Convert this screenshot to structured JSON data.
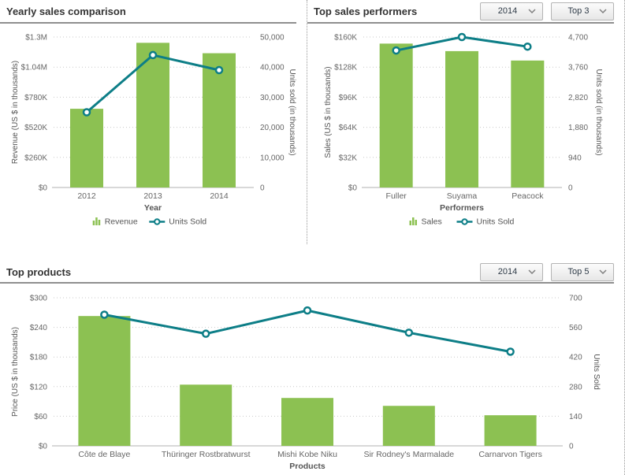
{
  "panels": {
    "performers": {
      "year_dropdown": "2014",
      "top_dropdown": "Top 3"
    },
    "products": {
      "year_dropdown": "2014",
      "top_dropdown": "Top 5"
    }
  },
  "colors": {
    "bar": "#8cc152",
    "line": "#0d7e87",
    "marker_fill": "#ffffff",
    "grid": "#c9c9c9",
    "axis_line": "#b0b0b0",
    "tick_text": "#666666",
    "axis_title_text": "#555555"
  },
  "chart_data": [
    {
      "type": "combo",
      "title": "Yearly sales comparison",
      "categories": [
        "2012",
        "2013",
        "2014"
      ],
      "series": [
        {
          "name": "Revenue",
          "type": "bar",
          "axis": "left",
          "values": [
            680000,
            1250000,
            1160000
          ]
        },
        {
          "name": "Units Sold",
          "type": "line",
          "axis": "right",
          "values": [
            25000,
            44000,
            39000
          ]
        }
      ],
      "left_axis": {
        "label": "Revenue (US $ in thousands)",
        "ticks": [
          "$0",
          "$260K",
          "$520K",
          "$780K",
          "$1.04M",
          "$1.3M"
        ],
        "min": 0,
        "max": 1300000
      },
      "right_axis": {
        "label": "Units sold (in thousands)",
        "ticks": [
          "0",
          "10,000",
          "20,000",
          "30,000",
          "40,000",
          "50,000"
        ],
        "min": 0,
        "max": 50000
      },
      "x_axis_label": "Year",
      "legend": [
        "Revenue",
        "Units Sold"
      ],
      "legend_position": "bottom-center",
      "grid": "dotted"
    },
    {
      "type": "combo",
      "title": "Top sales performers",
      "categories": [
        "Fuller",
        "Suyama",
        "Peacock"
      ],
      "series": [
        {
          "name": "Sales",
          "type": "bar",
          "axis": "left",
          "values": [
            153000,
            145000,
            135000
          ]
        },
        {
          "name": "Units Sold",
          "type": "line",
          "axis": "right",
          "values": [
            4280,
            4700,
            4400
          ]
        }
      ],
      "left_axis": {
        "label": "Sales (US $ in thousands)",
        "ticks": [
          "$0",
          "$32K",
          "$64K",
          "$96K",
          "$128K",
          "$160K"
        ],
        "min": 0,
        "max": 160000
      },
      "right_axis": {
        "label": "Units sold (in thousands)",
        "ticks": [
          "0",
          "940",
          "1,880",
          "2,820",
          "3,760",
          "4,700"
        ],
        "min": 0,
        "max": 4700
      },
      "x_axis_label": "Performers",
      "legend": [
        "Sales",
        "Units Sold"
      ],
      "legend_position": "bottom-center",
      "grid": "dotted"
    },
    {
      "type": "combo",
      "title": "Top products",
      "categories": [
        "Côte de Blaye",
        "Thüringer Rostbratwurst",
        "Mishi Kobe Niku",
        "Sir Rodney's Marmalade",
        "Carnarvon Tigers"
      ],
      "series": [
        {
          "name": "Price",
          "type": "bar",
          "axis": "left",
          "values": [
            263,
            124,
            97,
            81,
            62
          ]
        },
        {
          "name": "Units Sold",
          "type": "line",
          "axis": "right",
          "values": [
            620,
            530,
            640,
            535,
            445
          ]
        }
      ],
      "left_axis": {
        "label": "Price (US $ in thousands)",
        "ticks": [
          "$0",
          "$60",
          "$120",
          "$180",
          "$240",
          "$300"
        ],
        "min": 0,
        "max": 300
      },
      "right_axis": {
        "label": "Units Sold",
        "ticks": [
          "0",
          "140",
          "280",
          "420",
          "560",
          "700"
        ],
        "min": 0,
        "max": 700
      },
      "x_axis_label": "Products",
      "legend": [],
      "legend_position": "none",
      "grid": "dotted"
    }
  ]
}
